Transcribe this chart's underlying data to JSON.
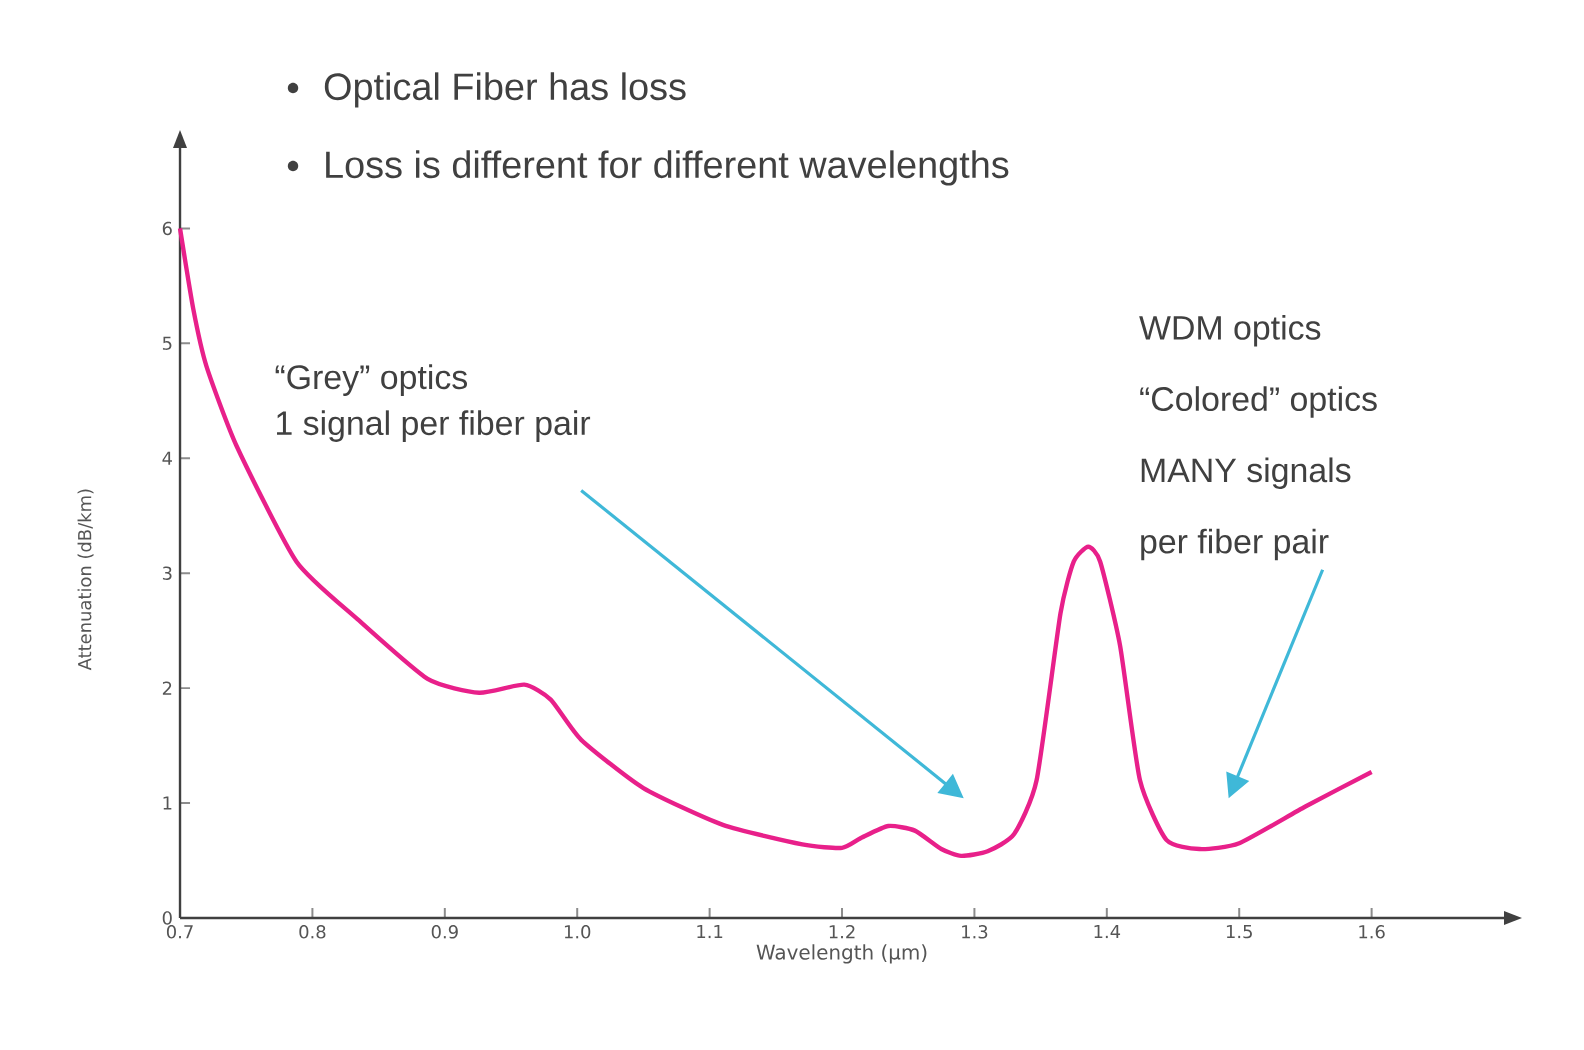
{
  "chart_data": {
    "type": "line",
    "title": "Optical Fiber has loss",
    "subtitle": "Loss is different for different wavelengths",
    "xlabel": "Wavelength (μm)",
    "ylabel": "Attenuation (dB/km)",
    "xlim": [
      0.7,
      1.7
    ],
    "ylim": [
      0,
      6.7
    ],
    "xticks": [
      {
        "value": 0.7,
        "label": "0.7"
      },
      {
        "value": 0.8,
        "label": "0.8"
      },
      {
        "value": 0.9,
        "label": "0.9"
      },
      {
        "value": 1.0,
        "label": "1.0"
      },
      {
        "value": 1.1,
        "label": "1.1"
      },
      {
        "value": 1.2,
        "label": "1.2"
      },
      {
        "value": 1.3,
        "label": "1.3"
      },
      {
        "value": 1.4,
        "label": "1.4"
      },
      {
        "value": 1.5,
        "label": "1.5"
      },
      {
        "value": 1.6,
        "label": "1.6"
      }
    ],
    "yticks": [
      0,
      1,
      2,
      3,
      4,
      5,
      6
    ],
    "x": [
      0.7,
      0.71,
      0.72,
      0.743,
      0.788,
      0.834,
      0.887,
      0.926,
      0.96,
      0.98,
      1.003,
      1.05,
      1.11,
      1.17,
      1.2,
      1.215,
      1.235,
      1.255,
      1.275,
      1.29,
      1.31,
      1.33,
      1.347,
      1.365,
      1.375,
      1.386,
      1.395,
      1.41,
      1.425,
      1.445,
      1.47,
      1.5,
      1.55,
      1.6
    ],
    "values": [
      6.0,
      5.3,
      4.8,
      4.1,
      3.1,
      2.6,
      2.08,
      1.96,
      2.03,
      1.9,
      1.55,
      1.13,
      0.81,
      0.64,
      0.61,
      0.7,
      0.8,
      0.76,
      0.6,
      0.54,
      0.58,
      0.73,
      1.2,
      2.65,
      3.1,
      3.23,
      3.1,
      2.37,
      1.2,
      0.68,
      0.6,
      0.65,
      0.97,
      1.27
    ],
    "color": "#e8208a",
    "grid": false,
    "marker": "none",
    "line_style": "solid",
    "annotations": [
      "“Grey” optics",
      "1 signal per fiber pair",
      "WDM optics",
      "“Colored” optics",
      "MANY signals",
      "per fiber pair"
    ]
  }
}
